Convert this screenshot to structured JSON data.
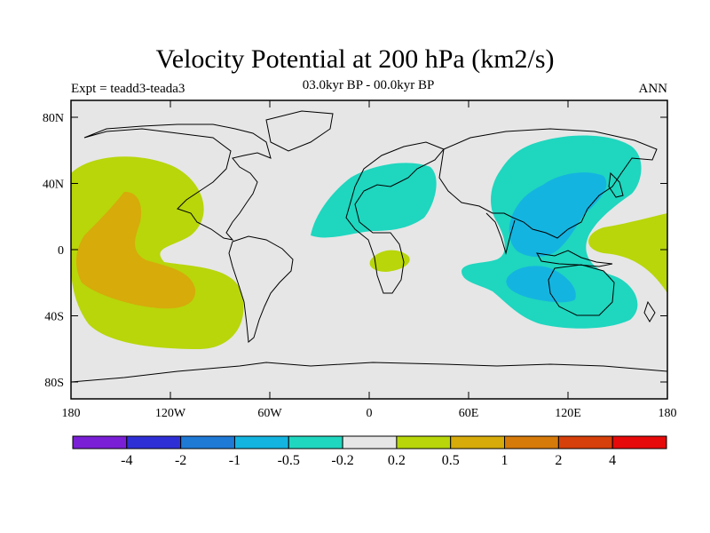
{
  "title": "Velocity Potential at 200 hPa (km2/s)",
  "subtitle": "03.0kyr BP - 00.0kyr BP",
  "left_label": "Expt = teadd3-teada3",
  "right_label": "ANN",
  "x_ticks": [
    "180",
    "120W",
    "60W",
    "0",
    "60E",
    "120E",
    "180"
  ],
  "y_ticks": [
    "80N",
    "40N",
    "0",
    "40S",
    "80S"
  ],
  "colorbar": {
    "colors": [
      "#7a1fd6",
      "#2f2fd6",
      "#1f7ad6",
      "#14b4e0",
      "#1fd6bf",
      "#e6e6e6",
      "#b8d60a",
      "#d6ab0a",
      "#d67a0a",
      "#d6400a",
      "#e60a0a"
    ],
    "labels": [
      "-4",
      "-2",
      "-1",
      "-0.5",
      "-0.2",
      "0.2",
      "0.5",
      "1",
      "2",
      "4"
    ]
  },
  "colors": {
    "background": "#e6e6e6",
    "positive_weak": "#b8d60a",
    "positive_mid": "#d6ab0a",
    "negative_weak": "#1fd6bf",
    "negative_mid": "#14b4e0"
  }
}
